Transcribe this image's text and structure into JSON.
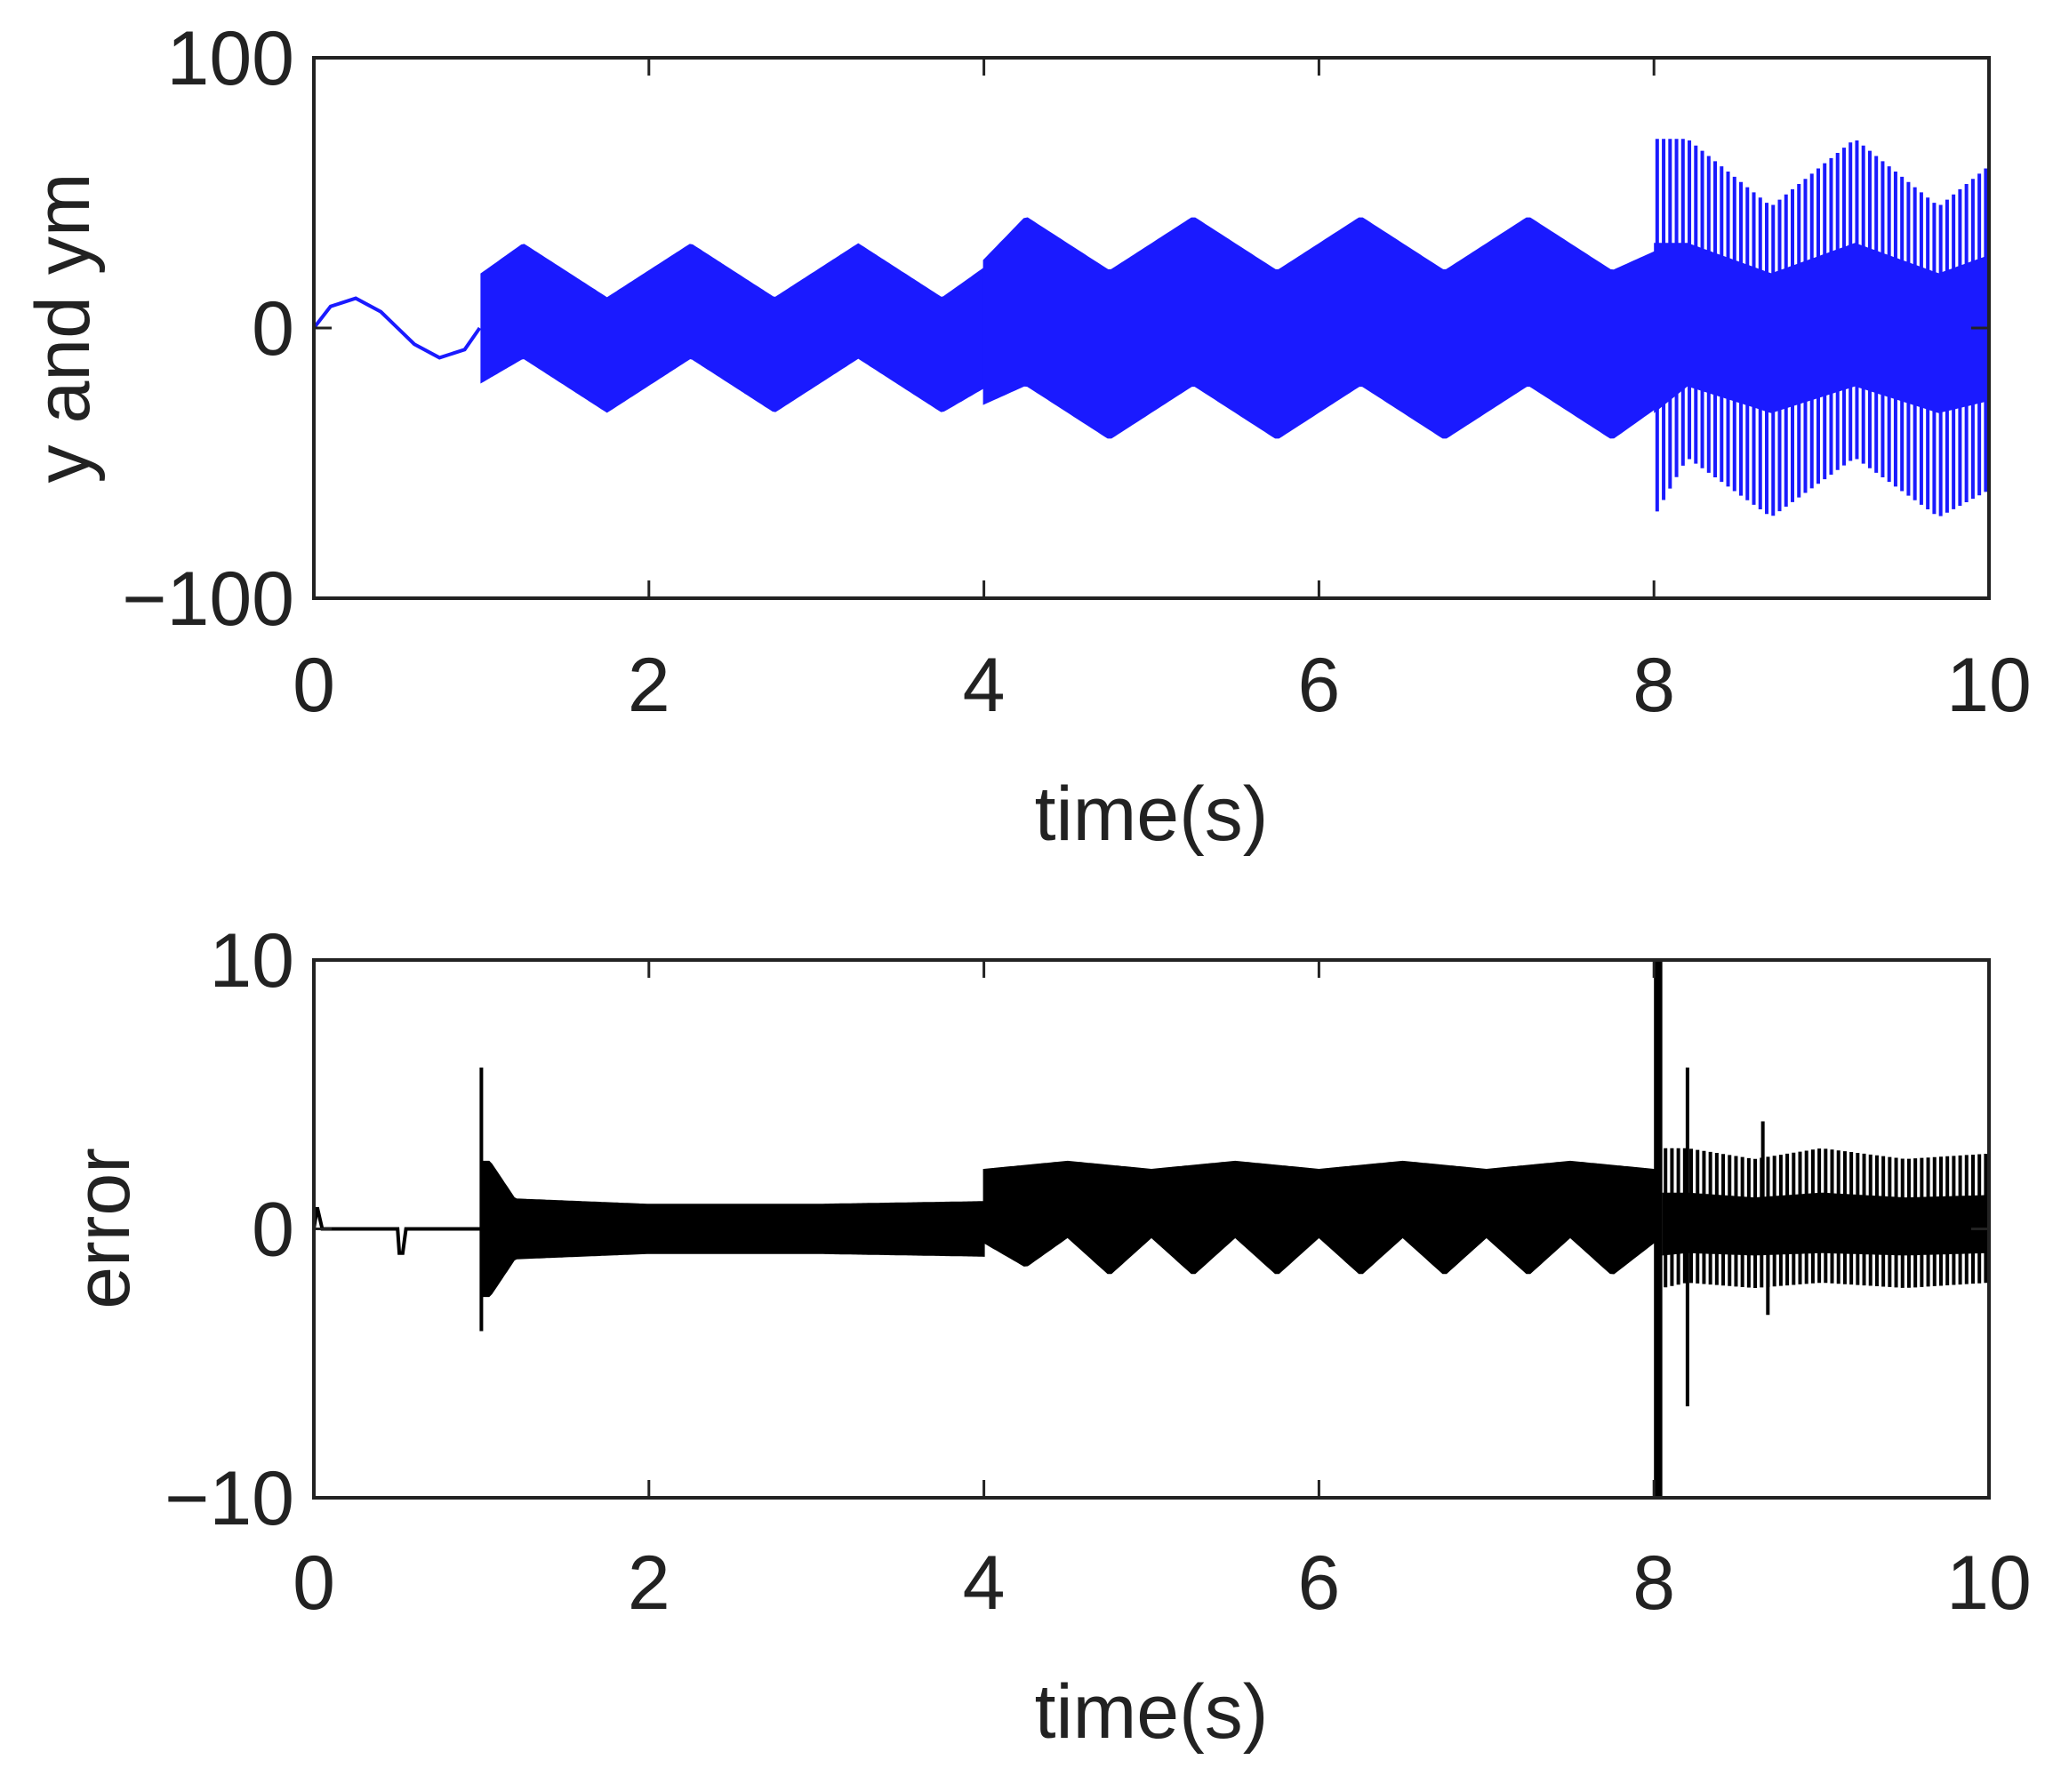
{
  "colors": {
    "response": "#1a1aff",
    "error": "#000000",
    "axes": "#222222",
    "background": "#ffffff"
  },
  "chart_data": [
    {
      "type": "line",
      "title": "",
      "xlabel": "time(s)",
      "ylabel": "y and ym",
      "xlim": [
        0,
        10
      ],
      "ylim": [
        -100,
        100
      ],
      "x_ticks": [
        "0",
        "2",
        "4",
        "6",
        "8",
        "10"
      ],
      "y_ticks": [
        "−100",
        "0",
        "100"
      ],
      "grid": false,
      "legend": "none",
      "series": [
        {
          "color": "#1a1aff",
          "envelope_note": "dense oscillation; values are the upper/lower envelope",
          "segments": [
            {
              "t": [
                0,
                0.1,
                0.25,
                0.4,
                0.5,
                0.6,
                0.75,
                0.9,
                0.99
              ],
              "y": [
                0,
                8,
                11,
                6,
                0,
                -6,
                -11,
                -8,
                0
              ]
            },
            {
              "t_start": 1.0,
              "t_end": 4.0,
              "upper": {
                "t": [
                  1.0,
                  1.25,
                  1.75,
                  2.25,
                  2.75,
                  3.25,
                  3.75,
                  4.0
                ],
                "y": [
                  20,
                  31,
                  11,
                  31,
                  11,
                  31,
                  11,
                  22
                ]
              },
              "lower": {
                "t": [
                  1.0,
                  1.25,
                  1.75,
                  2.25,
                  2.75,
                  3.25,
                  3.75,
                  4.0
                ],
                "y": [
                  -20,
                  -11,
                  -31,
                  -11,
                  -31,
                  -11,
                  -31,
                  -22
                ]
              }
            },
            {
              "t_start": 4.0,
              "t_end": 8.0,
              "upper": {
                "t": [
                  4.0,
                  4.25,
                  4.75,
                  5.25,
                  5.75,
                  6.25,
                  6.75,
                  7.25,
                  7.75,
                  8.0
                ],
                "y": [
                  25,
                  41,
                  21,
                  41,
                  21,
                  41,
                  21,
                  41,
                  21,
                  28
                ]
              },
              "lower": {
                "t": [
                  4.0,
                  4.25,
                  4.75,
                  5.25,
                  5.75,
                  6.25,
                  6.75,
                  7.25,
                  7.75,
                  8.0
                ],
                "y": [
                  -28,
                  -21,
                  -41,
                  -21,
                  -41,
                  -21,
                  -41,
                  -21,
                  -41,
                  -30
                ]
              }
            },
            {
              "t_start": 8.0,
              "t_end": 10.0,
              "spikes_per_second": 26,
              "upper": {
                "t": [
                  8.0,
                  8.2,
                  8.7,
                  9.2,
                  9.7,
                  10.0
                ],
                "y": [
                  70,
                  70,
                  45,
                  70,
                  45,
                  60
                ]
              },
              "lower": {
                "t": [
                  8.0,
                  8.2,
                  8.7,
                  9.2,
                  9.7,
                  10.0
                ],
                "y": [
                  -70,
                  -48,
                  -70,
                  -48,
                  -70,
                  -60
                ]
              }
            }
          ]
        }
      ]
    },
    {
      "type": "line",
      "title": "",
      "xlabel": "time(s)",
      "ylabel": "error",
      "xlim": [
        0,
        10
      ],
      "ylim": [
        -10,
        10
      ],
      "x_ticks": [
        "0",
        "2",
        "4",
        "6",
        "8",
        "10"
      ],
      "y_ticks": [
        "−10",
        "0",
        "10"
      ],
      "grid": false,
      "legend": "none",
      "series": [
        {
          "color": "#000000",
          "segments": [
            {
              "t": [
                0,
                0.02,
                0.05,
                0.5,
                0.51,
                0.53,
                0.55,
                0.99
              ],
              "y": [
                0,
                0.8,
                0,
                0,
                -0.9,
                -0.9,
                0,
                0
              ]
            },
            {
              "t_start": 1.0,
              "t_end": 4.0,
              "spike": {
                "t": 1.0,
                "high": 6,
                "low": -3.8
              },
              "upper": {
                "t": [
                  1.05,
                  1.2,
                  2.0,
                  3.0,
                  4.0
                ],
                "y": [
                  2.5,
                  1.1,
                  0.9,
                  0.9,
                  1.0
                ]
              },
              "lower": {
                "t": [
                  1.05,
                  1.2,
                  2.0,
                  3.0,
                  4.0
                ],
                "y": [
                  -2.5,
                  -1.1,
                  -0.9,
                  -0.9,
                  -1.0
                ]
              }
            },
            {
              "t_start": 4.0,
              "t_end": 8.0,
              "upper": {
                "t": [
                  4.0,
                  4.5,
                  5.0,
                  5.5,
                  6.0,
                  6.5,
                  7.0,
                  7.5,
                  8.0
                ],
                "y": [
                  2.2,
                  2.5,
                  2.2,
                  2.5,
                  2.2,
                  2.5,
                  2.2,
                  2.5,
                  2.2
                ]
              },
              "lower": {
                "t": [
                  4.0,
                  4.25,
                  4.5,
                  4.75,
                  5.0,
                  5.25,
                  5.5,
                  5.75,
                  6.0,
                  6.25,
                  6.5,
                  6.75,
                  7.0,
                  7.25,
                  7.5,
                  7.75,
                  8.0
                ],
                "y": [
                  -0.5,
                  -1.4,
                  -0.3,
                  -1.7,
                  -0.3,
                  -1.7,
                  -0.3,
                  -1.7,
                  -0.3,
                  -1.7,
                  -0.3,
                  -1.7,
                  -0.3,
                  -1.7,
                  -0.3,
                  -1.7,
                  -0.5
                ]
              }
            },
            {
              "t_start": 8.0,
              "t_end": 8.05,
              "burst": {
                "high": 10,
                "low": -10
              }
            },
            {
              "t_start": 8.05,
              "t_end": 10.0,
              "spikes_per_second": 26,
              "upper": {
                "t": [
                  8.05,
                  8.2,
                  8.6,
                  9.0,
                  9.5,
                  10.0
                ],
                "y": [
                  3,
                  3,
                  2.6,
                  3,
                  2.6,
                  2.8
                ]
              },
              "lower": {
                "t": [
                  8.05,
                  8.2,
                  8.6,
                  9.0,
                  9.5,
                  10.0
                ],
                "y": [
                  -2.2,
                  -2.0,
                  -2.2,
                  -2.0,
                  -2.2,
                  -2.0
                ]
              },
              "extra_spikes": [
                {
                  "t": 8.2,
                  "y": 6
                },
                {
                  "t": 8.2,
                  "y": -6.6
                },
                {
                  "t": 8.65,
                  "y": 4
                },
                {
                  "t": 8.68,
                  "y": -3.2
                }
              ]
            }
          ]
        }
      ]
    }
  ]
}
